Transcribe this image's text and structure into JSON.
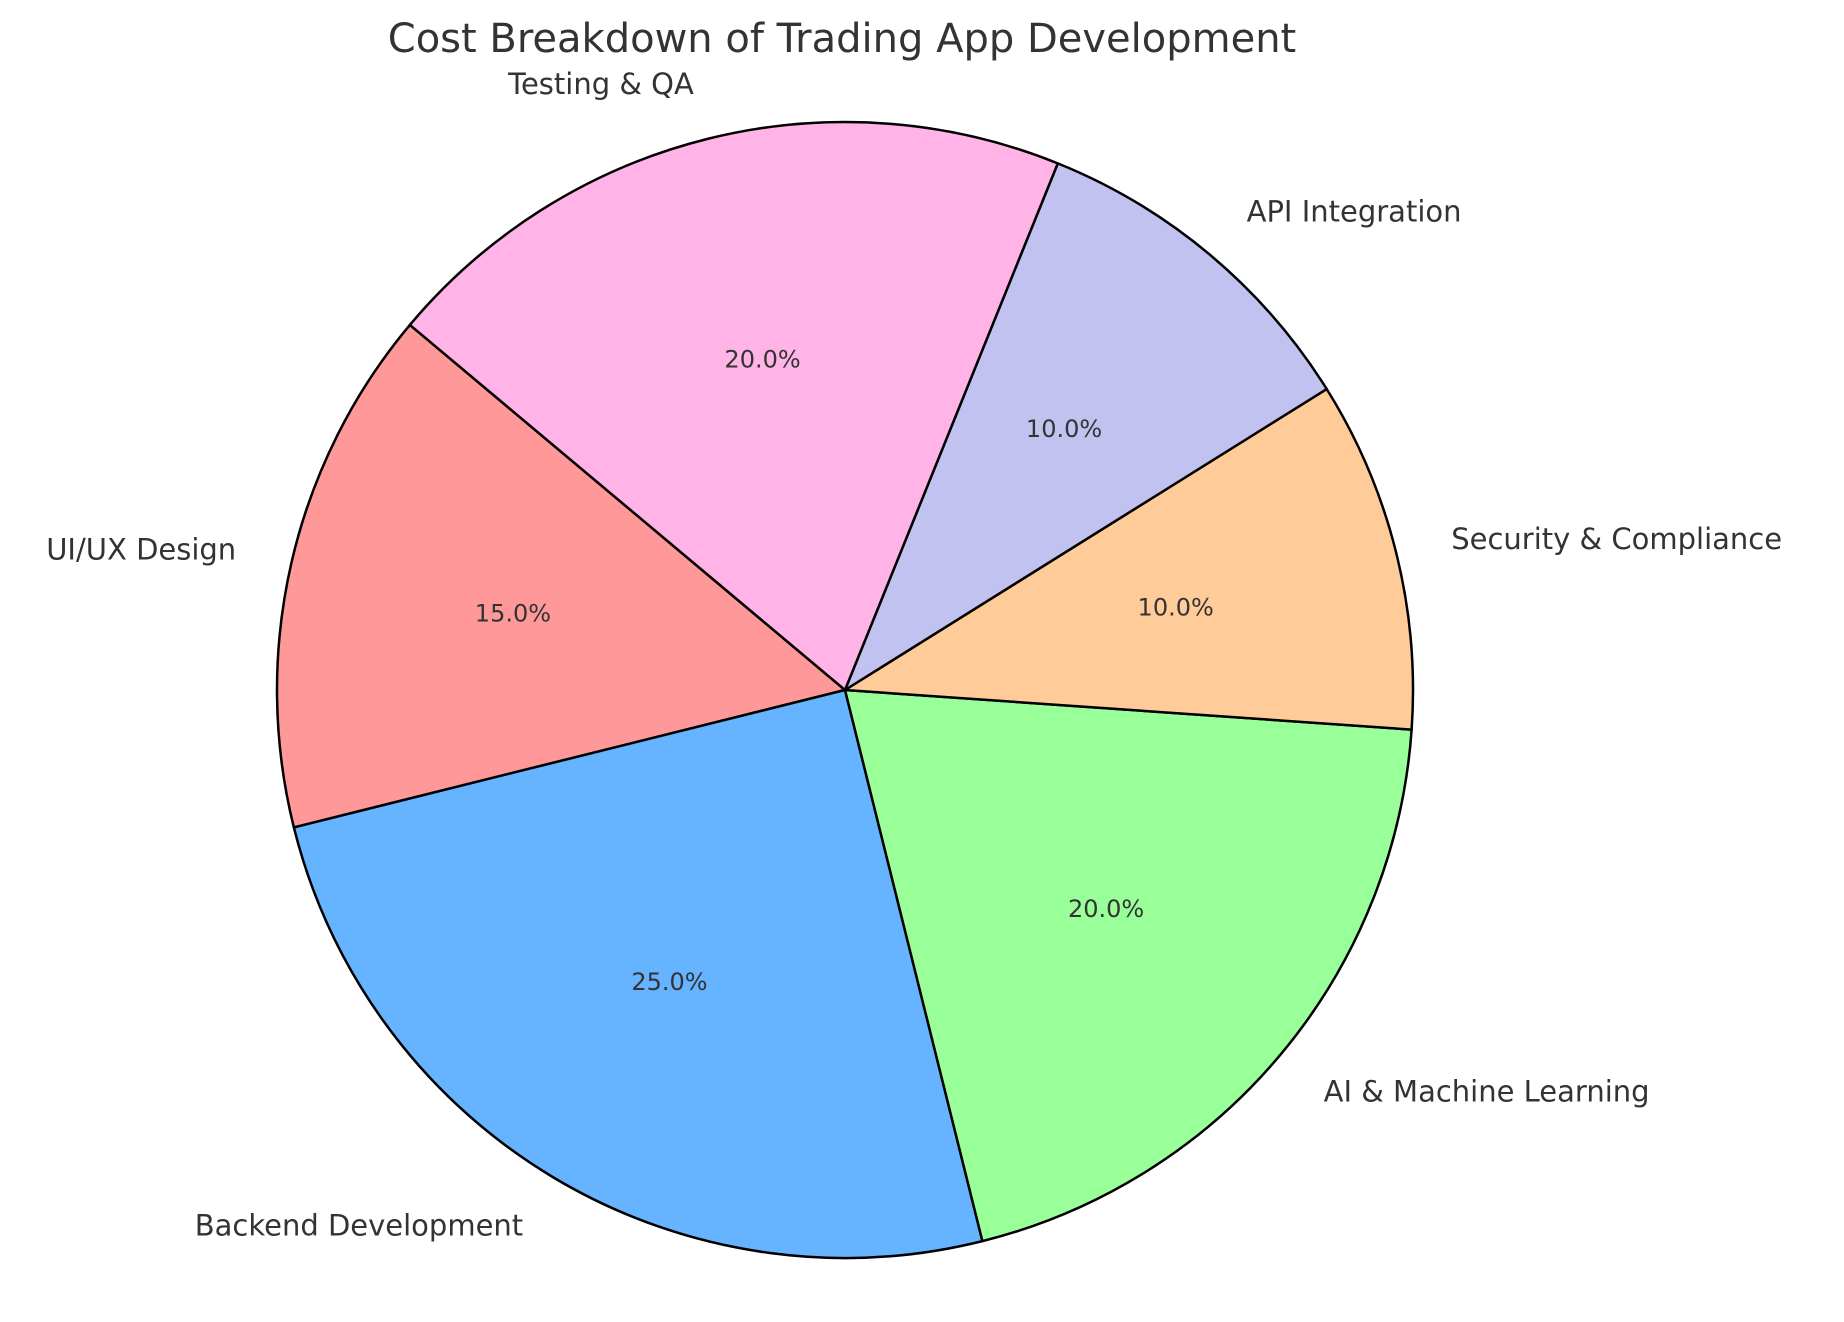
{
  "chart_data": {
    "type": "pie",
    "title": "Cost Breakdown of Trading App Development",
    "categories": [
      "UI/UX Design",
      "Backend Development",
      "AI & Machine Learning",
      "Security & Compliance",
      "API Integration",
      "Testing & QA"
    ],
    "values": [
      15,
      25,
      20,
      10,
      10,
      20
    ],
    "percent_labels": [
      "15.0%",
      "25.0%",
      "20.0%",
      "10.0%",
      "10.0%",
      "20.0%"
    ],
    "colors": [
      "#ff9999",
      "#66b3ff",
      "#99ff99",
      "#ffcc99",
      "#c2c2f0",
      "#ffb3e6"
    ],
    "start_angle_deg": 140,
    "direction": "counterclockwise",
    "legend": "none"
  }
}
